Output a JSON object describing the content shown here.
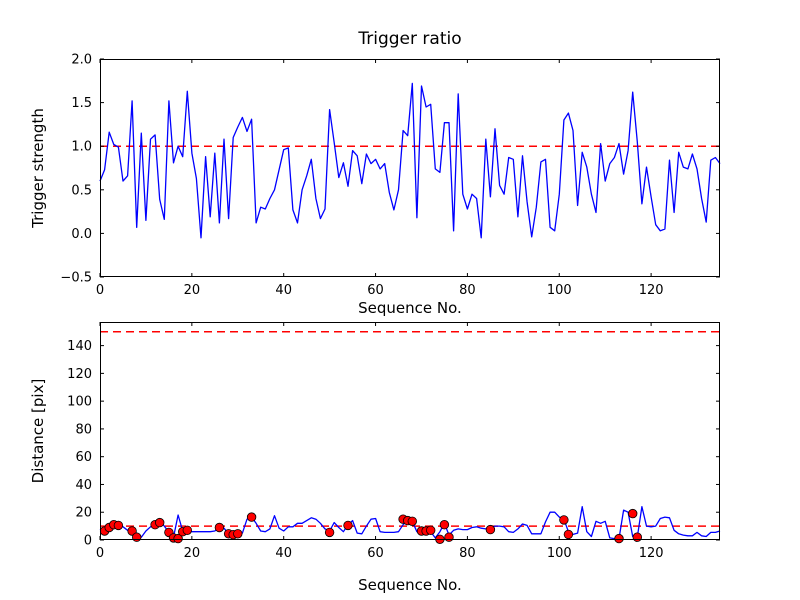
{
  "figure": {
    "background": "#ffffff",
    "axis_color": "#000000",
    "line_color": "#0000ff",
    "threshold_color": "#ff0000",
    "marker_face": "#ff0000",
    "marker_edge": "#000000"
  },
  "chart_data": [
    {
      "type": "line",
      "title": "Trigger ratio",
      "xlabel": "Sequence No.",
      "ylabel": "Trigger strength",
      "grid": false,
      "legend": null,
      "xlim": [
        0,
        135
      ],
      "ylim": [
        -0.5,
        2.0
      ],
      "xtick_values": [
        0,
        20,
        40,
        60,
        80,
        100,
        120
      ],
      "xtick_labels": [
        "0",
        "20",
        "40",
        "60",
        "80",
        "100",
        "120"
      ],
      "ytick_values": [
        -0.5,
        0.0,
        0.5,
        1.0,
        1.5,
        2.0
      ],
      "ytick_labels": [
        "−0.5",
        "0.0",
        "0.5",
        "1.0",
        "1.5",
        "2.0"
      ],
      "thresholds": [
        1.0
      ],
      "series": [
        {
          "name": "trigger-strength",
          "x_start": 0,
          "x_step": 1,
          "values": [
            0.6,
            0.73,
            1.16,
            1.02,
            0.99,
            0.6,
            0.66,
            1.52,
            0.07,
            1.15,
            0.15,
            1.08,
            1.13,
            0.39,
            0.16,
            1.52,
            0.81,
            1.0,
            0.88,
            1.63,
            0.92,
            0.63,
            -0.05,
            0.88,
            0.19,
            0.92,
            0.12,
            1.08,
            0.17,
            1.1,
            1.22,
            1.33,
            1.17,
            1.31,
            0.12,
            0.3,
            0.28,
            0.4,
            0.5,
            0.73,
            0.96,
            0.98,
            0.27,
            0.12,
            0.5,
            0.66,
            0.85,
            0.4,
            0.17,
            0.28,
            1.42,
            1.04,
            0.64,
            0.81,
            0.54,
            0.95,
            0.89,
            0.57,
            0.91,
            0.8,
            0.85,
            0.74,
            0.8,
            0.47,
            0.27,
            0.5,
            1.18,
            1.12,
            1.72,
            0.18,
            1.69,
            1.45,
            1.48,
            0.74,
            0.7,
            1.27,
            1.27,
            0.03,
            1.6,
            0.45,
            0.28,
            0.45,
            0.4,
            -0.05,
            1.08,
            0.42,
            1.2,
            0.55,
            0.45,
            0.87,
            0.85,
            0.19,
            0.89,
            0.36,
            -0.04,
            0.3,
            0.82,
            0.85,
            0.07,
            0.03,
            0.45,
            1.3,
            1.38,
            1.18,
            0.32,
            0.93,
            0.76,
            0.45,
            0.24,
            1.03,
            0.6,
            0.8,
            0.87,
            1.03,
            0.68,
            0.95,
            1.62,
            1.05,
            0.34,
            0.76,
            0.42,
            0.1,
            0.03,
            0.05,
            0.84,
            0.24,
            0.93,
            0.76,
            0.74,
            0.91,
            0.74,
            0.4,
            0.13,
            0.84,
            0.87,
            0.8
          ]
        }
      ]
    },
    {
      "type": "line+scatter",
      "title": "",
      "xlabel": "Sequence No.",
      "ylabel": "Distance [pix]",
      "grid": false,
      "legend": null,
      "xlim": [
        0,
        135
      ],
      "ylim": [
        0,
        157
      ],
      "xtick_values": [
        0,
        20,
        40,
        60,
        80,
        100,
        120
      ],
      "xtick_labels": [
        "0",
        "20",
        "40",
        "60",
        "80",
        "100",
        "120"
      ],
      "ytick_values": [
        0,
        20,
        40,
        60,
        80,
        100,
        120,
        140
      ],
      "ytick_labels": [
        "0",
        "20",
        "40",
        "60",
        "80",
        "100",
        "120",
        "140"
      ],
      "thresholds": [
        150,
        10
      ],
      "series": [
        {
          "name": "distance",
          "x_start": 0,
          "x_step": 1,
          "values": [
            8,
            6,
            9,
            11.5,
            10.5,
            9.5,
            7,
            6.5,
            5,
            2,
            6.5,
            9.5,
            11,
            13.5,
            10,
            5.5,
            2,
            18,
            6.5,
            7,
            6,
            6,
            6,
            6,
            6,
            6.5,
            9,
            8.5,
            4.5,
            4,
            4.5,
            5,
            15,
            16.5,
            12,
            6.5,
            6,
            8,
            17.5,
            8.5,
            6.5,
            9.5,
            9.5,
            12,
            12,
            14,
            16,
            15,
            12,
            8,
            6.5,
            12.5,
            9,
            6,
            11,
            14,
            5,
            4.5,
            10,
            15,
            15.5,
            6,
            5.5,
            5.5,
            5.5,
            6,
            11,
            14,
            13.5,
            6,
            6.5,
            7,
            6,
            1.5,
            6,
            12,
            3.5,
            7,
            8,
            7.5,
            7.5,
            9,
            9.5,
            8.5,
            8,
            8,
            10,
            10,
            9.5,
            6,
            5.5,
            8,
            11.5,
            10.5,
            4.5,
            4.5,
            4.5,
            13,
            20,
            20,
            16.5,
            15,
            6,
            4,
            5,
            24,
            6,
            2.5,
            13.5,
            12,
            13.5,
            1.5,
            1,
            1,
            21.5,
            20,
            2.5,
            2,
            24,
            10,
            9.5,
            10,
            15.5,
            16.5,
            16,
            7,
            4.5,
            3.5,
            3,
            3,
            5.5,
            3,
            2.5,
            5.5,
            5.5,
            6.5
          ]
        }
      ],
      "scatter": {
        "name": "trigger-events",
        "points": [
          [
            1,
            6.5
          ],
          [
            2,
            9
          ],
          [
            3,
            11
          ],
          [
            4,
            10.5
          ],
          [
            7,
            6.5
          ],
          [
            8,
            2
          ],
          [
            12,
            11
          ],
          [
            13,
            12.5
          ],
          [
            15,
            5.5
          ],
          [
            16,
            1.5
          ],
          [
            17,
            1
          ],
          [
            18,
            6
          ],
          [
            19,
            7
          ],
          [
            26,
            9
          ],
          [
            28,
            4.5
          ],
          [
            29,
            3.8
          ],
          [
            30,
            4.5
          ],
          [
            33,
            16.5
          ],
          [
            50,
            5.5
          ],
          [
            54,
            10.5
          ],
          [
            66,
            15
          ],
          [
            67,
            14
          ],
          [
            68,
            13.5
          ],
          [
            70,
            6.5
          ],
          [
            71,
            6.5
          ],
          [
            72,
            7
          ],
          [
            74,
            0.5
          ],
          [
            75,
            11
          ],
          [
            76,
            2
          ],
          [
            85,
            7.5
          ],
          [
            101,
            14.5
          ],
          [
            102,
            4
          ],
          [
            113,
            1
          ],
          [
            116,
            19
          ],
          [
            117,
            2
          ]
        ]
      }
    }
  ]
}
